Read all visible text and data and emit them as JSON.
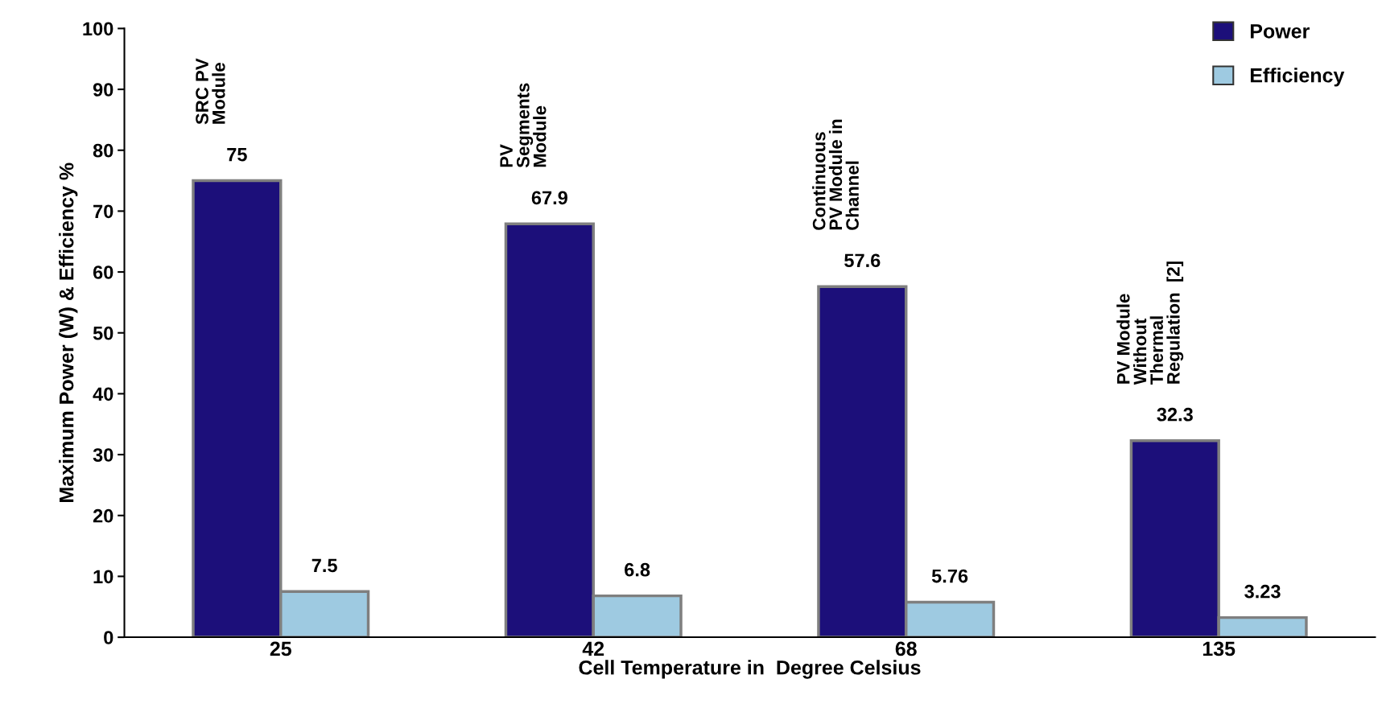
{
  "chart_data": {
    "type": "bar",
    "xlabel": "Cell Temperature in  Degree Celsius",
    "ylabel": "Maximum Power (W) & Efficiency %",
    "categories": [
      "25",
      "42",
      "68",
      "135"
    ],
    "series": [
      {
        "name": "Power",
        "color": "#1c0f7a",
        "values": [
          75,
          67.9,
          57.6,
          32.3
        ]
      },
      {
        "name": "Efficiency",
        "color": "#9ecae1",
        "values": [
          7.5,
          6.8,
          5.76,
          3.23
        ]
      }
    ],
    "ylim": [
      0,
      100
    ],
    "yticks": [
      0,
      10,
      20,
      30,
      40,
      50,
      60,
      70,
      80,
      90,
      100
    ],
    "data_labels": true,
    "grid": false,
    "legend": "top right",
    "annotations": [
      "SRC PV\nModule",
      "PV\nSegments\nModule",
      "Continuous\nPV Module in\nChannel",
      "PV Module\nWithout\nThermal\nRegulation  [2]"
    ]
  }
}
